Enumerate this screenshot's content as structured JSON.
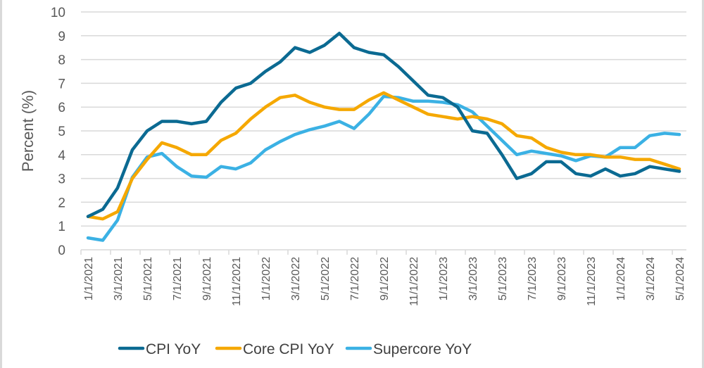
{
  "chart_data": {
    "type": "line",
    "title": "",
    "xlabel": "",
    "ylabel": "Percent (%)",
    "ylim": [
      0,
      10
    ],
    "yticks": [
      "0",
      "1",
      "2",
      "3",
      "4",
      "5",
      "6",
      "7",
      "8",
      "9",
      "10"
    ],
    "grid": "horizontal",
    "legend_position": "bottom",
    "x": [
      "1/1/2021",
      "2/1/2021",
      "3/1/2021",
      "4/1/2021",
      "5/1/2021",
      "6/1/2021",
      "7/1/2021",
      "8/1/2021",
      "9/1/2021",
      "10/1/2021",
      "11/1/2021",
      "12/1/2021",
      "1/1/2022",
      "2/1/2022",
      "3/1/2022",
      "4/1/2022",
      "5/1/2022",
      "6/1/2022",
      "7/1/2022",
      "8/1/2022",
      "9/1/2022",
      "10/1/2022",
      "11/1/2022",
      "12/1/2022",
      "1/1/2023",
      "2/1/2023",
      "3/1/2023",
      "4/1/2023",
      "5/1/2023",
      "6/1/2023",
      "7/1/2023",
      "8/1/2023",
      "9/1/2023",
      "10/1/2023",
      "11/1/2023",
      "12/1/2023",
      "1/1/2024",
      "2/1/2024",
      "3/1/2024",
      "4/1/2024",
      "5/1/2024"
    ],
    "xtick_labels": [
      "1/1/2021",
      "3/1/2021",
      "5/1/2021",
      "7/1/2021",
      "9/1/2021",
      "11/1/2021",
      "1/1/2022",
      "3/1/2022",
      "5/1/2022",
      "7/1/2022",
      "9/1/2022",
      "11/1/2022",
      "1/1/2023",
      "3/1/2023",
      "5/1/2023",
      "7/1/2023",
      "9/1/2023",
      "11/1/2023",
      "1/1/2024",
      "3/1/2024",
      "5/1/2024"
    ],
    "series": [
      {
        "name": "CPI YoY",
        "color": "#0b6a92",
        "values": [
          1.4,
          1.7,
          2.6,
          4.2,
          5.0,
          5.4,
          5.4,
          5.3,
          5.4,
          6.2,
          6.8,
          7.0,
          7.5,
          7.9,
          8.5,
          8.3,
          8.6,
          9.1,
          8.5,
          8.3,
          8.2,
          7.7,
          7.1,
          6.5,
          6.4,
          6.0,
          5.0,
          4.9,
          4.0,
          3.0,
          3.2,
          3.7,
          3.7,
          3.2,
          3.1,
          3.4,
          3.1,
          3.2,
          3.5,
          3.4,
          3.3
        ]
      },
      {
        "name": "Core CPI YoY",
        "color": "#f5a800",
        "values": [
          1.4,
          1.3,
          1.6,
          3.0,
          3.8,
          4.5,
          4.3,
          4.0,
          4.0,
          4.6,
          4.9,
          5.5,
          6.0,
          6.4,
          6.5,
          6.2,
          6.0,
          5.9,
          5.9,
          6.3,
          6.6,
          6.3,
          6.0,
          5.7,
          5.6,
          5.5,
          5.6,
          5.5,
          5.3,
          4.8,
          4.7,
          4.3,
          4.1,
          4.0,
          4.0,
          3.9,
          3.9,
          3.8,
          3.8,
          3.6,
          3.4
        ]
      },
      {
        "name": "Supercore YoY",
        "color": "#3bb1e4",
        "values": [
          0.5,
          0.4,
          1.25,
          3.05,
          3.9,
          4.05,
          3.5,
          3.1,
          3.05,
          3.5,
          3.4,
          3.65,
          4.2,
          4.55,
          4.85,
          5.05,
          5.2,
          5.4,
          5.1,
          5.7,
          6.45,
          6.4,
          6.25,
          6.25,
          6.2,
          6.1,
          5.8,
          5.2,
          4.6,
          4.0,
          4.15,
          4.05,
          3.95,
          3.75,
          3.95,
          3.9,
          4.3,
          4.3,
          4.8,
          4.9,
          4.85
        ]
      }
    ]
  }
}
